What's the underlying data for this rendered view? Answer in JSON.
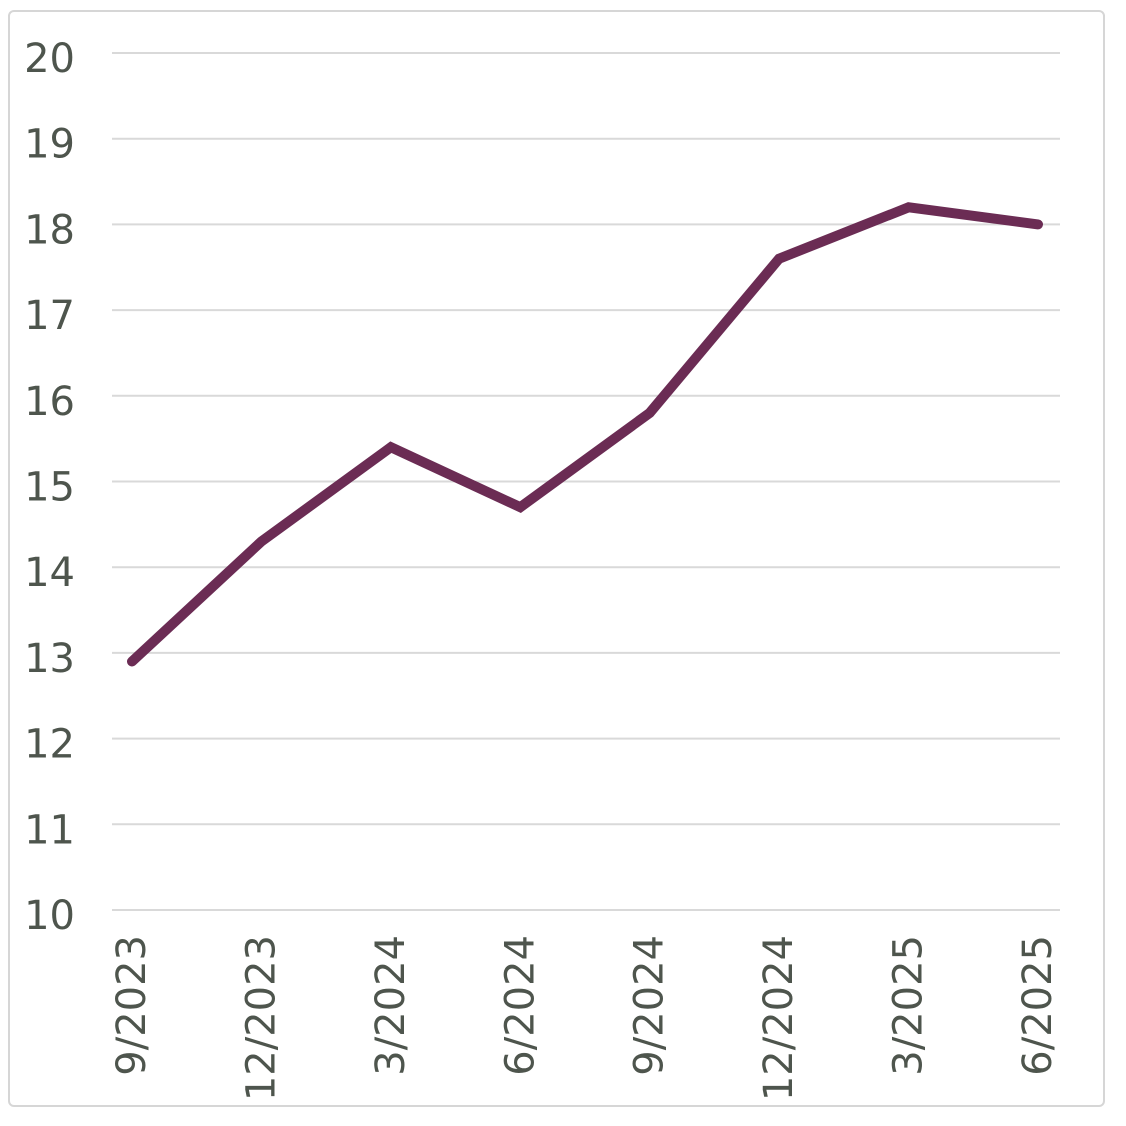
{
  "window": {
    "background_color": "#ffffff",
    "frame_border_color": "#d6d6d6"
  },
  "chart_data": {
    "type": "line",
    "title": "",
    "xlabel": "",
    "ylabel": "",
    "categories": [
      "9/2023",
      "12/2023",
      "3/2024",
      "6/2024",
      "9/2024",
      "12/2024",
      "3/2025",
      "6/2025"
    ],
    "series": [
      {
        "name": "series-1",
        "color": "#6b2c54",
        "values": [
          12.9,
          14.3,
          15.4,
          14.7,
          15.8,
          17.6,
          18.2,
          18.0
        ]
      }
    ],
    "ylim": [
      10,
      20
    ],
    "yticks": [
      20,
      19,
      18,
      17,
      16,
      15,
      14,
      13,
      12,
      11,
      10
    ],
    "x_tick_rotation_deg": -90,
    "grid": "horizontal",
    "grid_color": "#d9d9d9",
    "tick_label_color": "#4e554d",
    "legend_position": "none",
    "markers": "none"
  }
}
